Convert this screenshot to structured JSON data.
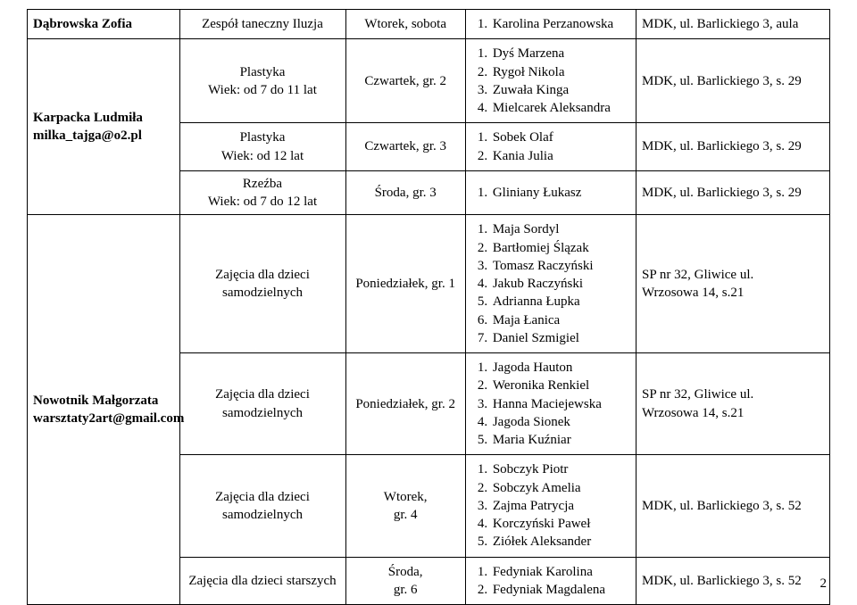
{
  "pageNumber": "2",
  "row1": {
    "teacher": "Dąbrowska Zofia",
    "subject": "Zespół taneczny Iluzja",
    "schedule": "Wtorek, sobota",
    "students": [
      "Karolina Perzanowska"
    ],
    "location": "MDK, ul. Barlickiego 3, aula"
  },
  "row2": {
    "teacher_line1": "Karpacka Ludmiła",
    "teacher_line2": "milka_tajga@o2.pl",
    "sub_a": {
      "subject_line1": "Plastyka",
      "subject_line2": "Wiek: od 7 do 11 lat",
      "schedule": "Czwartek, gr. 2",
      "students": [
        "Dyś Marzena",
        "Rygoł Nikola",
        "Zuwała Kinga",
        "Mielcarek Aleksandra"
      ],
      "location": "MDK, ul. Barlickiego 3, s. 29"
    },
    "sub_b": {
      "subject_line1": "Plastyka",
      "subject_line2": "Wiek: od 12 lat",
      "schedule": "Czwartek, gr. 3",
      "students": [
        "Sobek Olaf",
        "Kania Julia"
      ],
      "location": "MDK, ul. Barlickiego 3, s. 29"
    },
    "sub_c": {
      "subject_line1": "Rzeźba",
      "subject_line2": "Wiek: od 7 do 12 lat",
      "schedule": "Środa, gr. 3",
      "students": [
        "Gliniany Łukasz"
      ],
      "location": "MDK, ul. Barlickiego 3, s. 29"
    }
  },
  "row3": {
    "teacher_line1": "Nowotnik  Małgorzata",
    "teacher_line2": "warsztaty2art@gmail.com",
    "sub_a": {
      "subject_line1": "Zajęcia dla dzieci",
      "subject_line2": "samodzielnych",
      "schedule": "Poniedziałek, gr. 1",
      "students": [
        "Maja Sordyl",
        "Bartłomiej Ślązak",
        "Tomasz Raczyński",
        "Jakub Raczyński",
        "Adrianna Łupka",
        "Maja Łanica",
        "Daniel Szmigiel"
      ],
      "location_line1": "SP nr 32, Gliwice ul.",
      "location_line2": "Wrzosowa 14, s.21"
    },
    "sub_b": {
      "subject_line1": "Zajęcia dla dzieci",
      "subject_line2": "samodzielnych",
      "schedule": "Poniedziałek, gr. 2",
      "students": [
        "Jagoda Hauton",
        "Weronika Renkiel",
        "Hanna Maciejewska",
        "Jagoda Sionek",
        "Maria Kuźniar"
      ],
      "location_line1": "SP nr 32, Gliwice ul.",
      "location_line2": "Wrzosowa 14, s.21"
    },
    "sub_c": {
      "subject_line1": "Zajęcia dla dzieci",
      "subject_line2": "samodzielnych",
      "schedule_line1": "Wtorek,",
      "schedule_line2": "gr. 4",
      "students": [
        "Sobczyk Piotr",
        "Sobczyk Amelia",
        "Zajma Patrycja",
        "Korczyński Paweł",
        "Ziółek Aleksander"
      ],
      "location": "MDK, ul. Barlickiego 3, s. 52"
    },
    "sub_d": {
      "subject": "Zajęcia dla dzieci starszych",
      "schedule_line1": "Środa,",
      "schedule_line2": "gr. 6",
      "students": [
        "Fedyniak Karolina",
        "Fedyniak Magdalena"
      ],
      "location": "MDK, ul. Barlickiego 3, s. 52"
    }
  }
}
